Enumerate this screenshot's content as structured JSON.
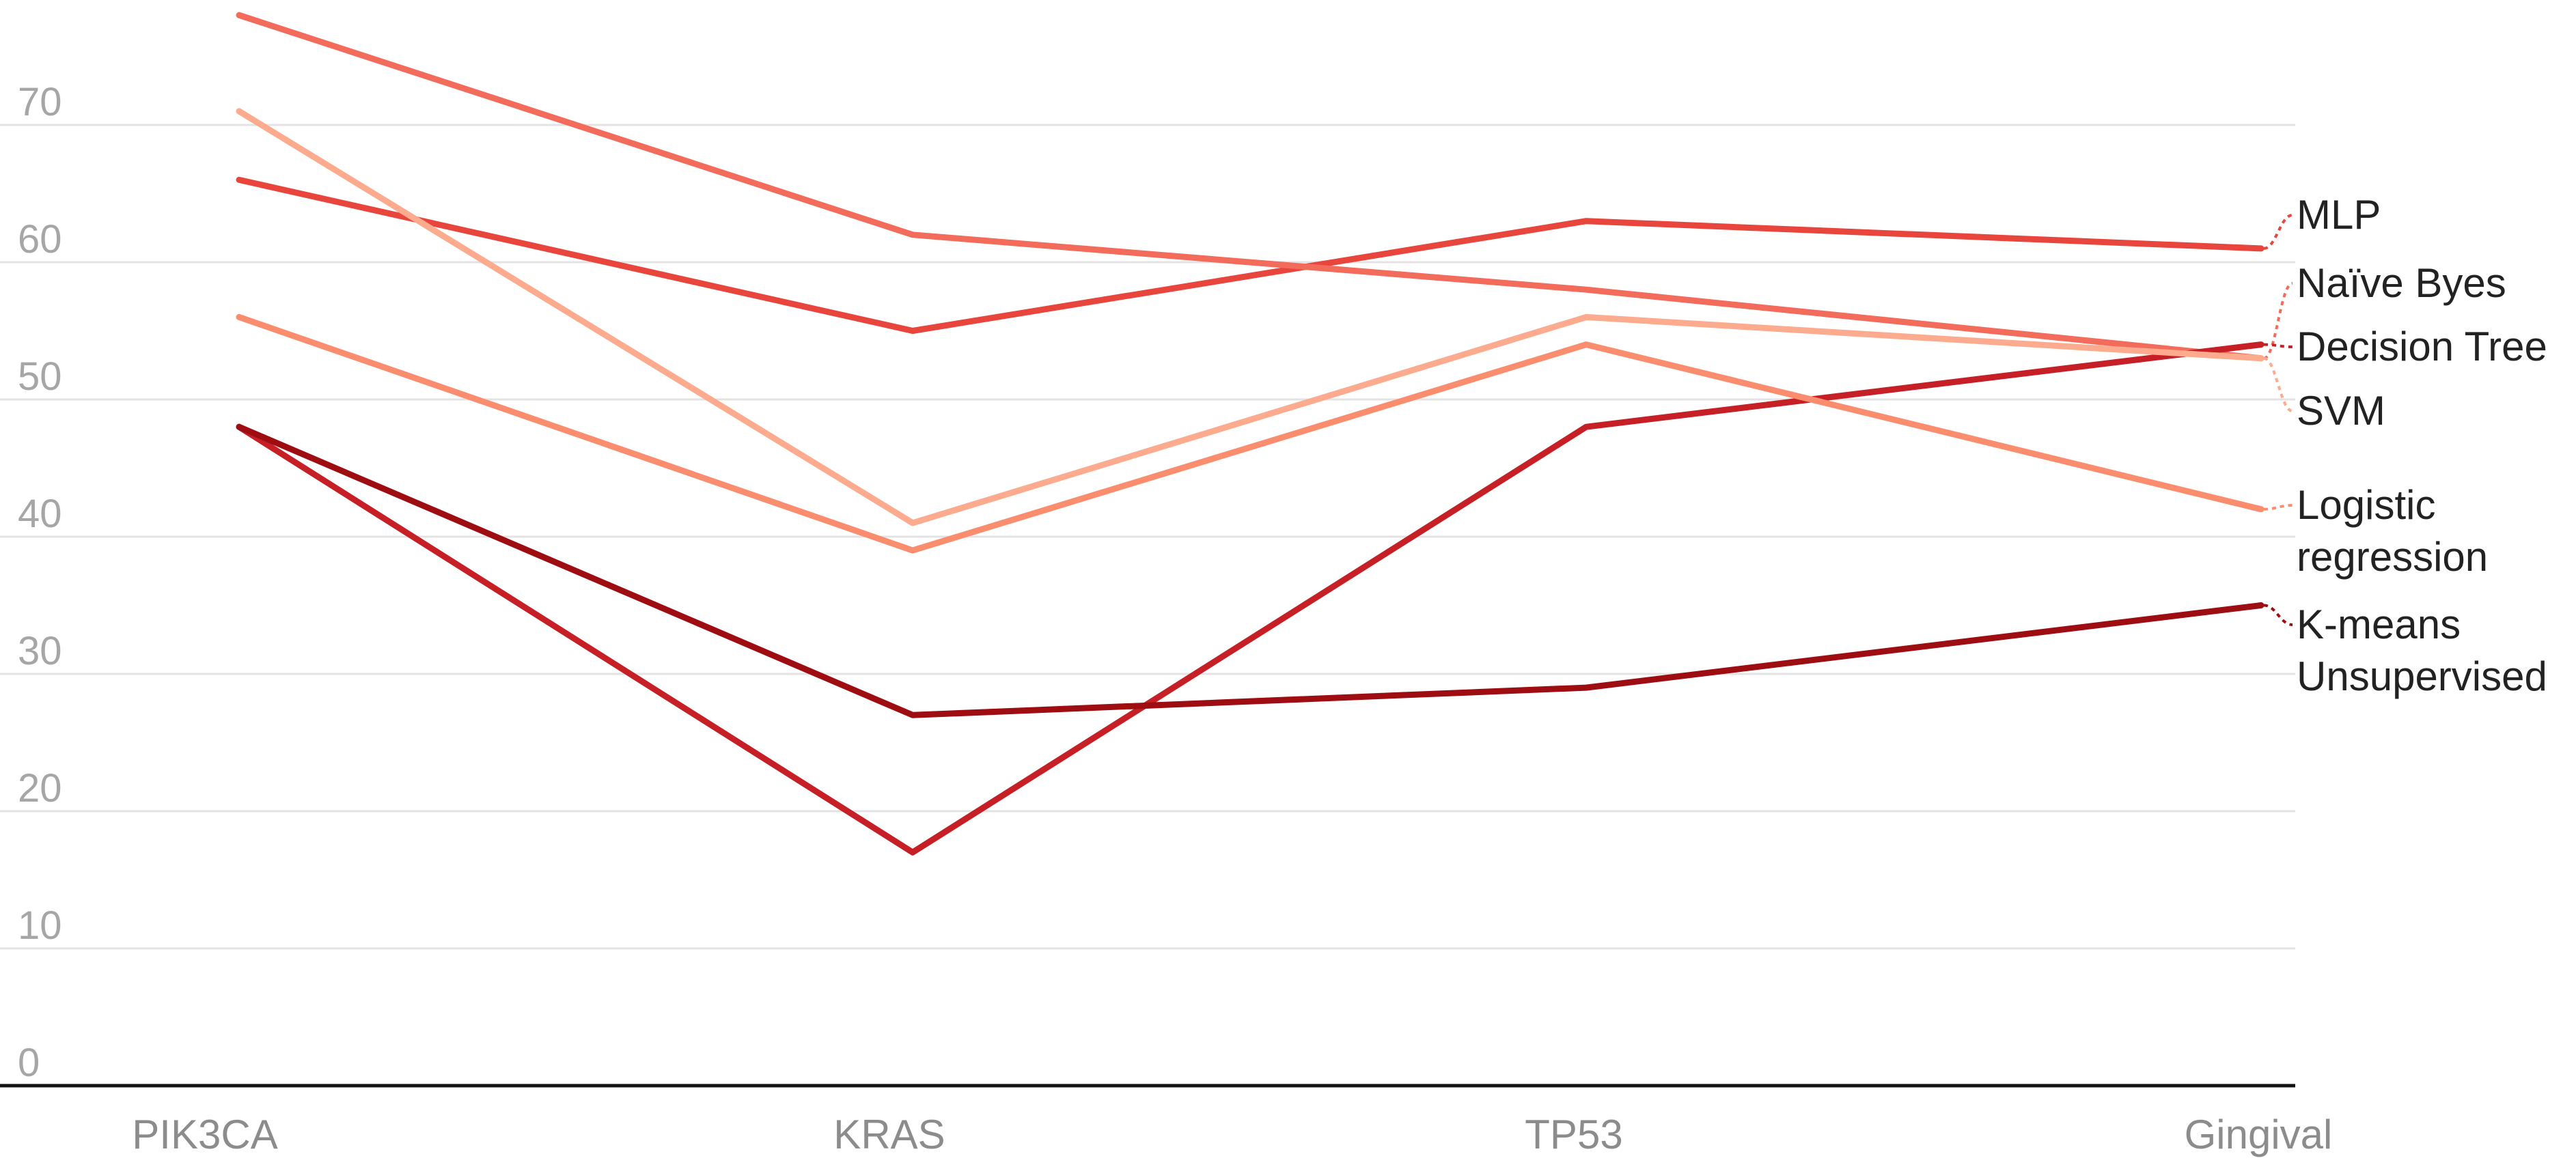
{
  "chart_data": {
    "type": "line",
    "title": "",
    "xlabel": "",
    "ylabel": "",
    "categories": [
      "PIK3CA",
      "KRAS",
      "TP53",
      "Gingival"
    ],
    "ylim": [
      0,
      78
    ],
    "yticks": [
      0,
      10,
      20,
      30,
      40,
      50,
      60,
      70
    ],
    "grid": true,
    "legend": "direct labels at right",
    "series": [
      {
        "name": "MLP",
        "label_lines": [
          "MLP"
        ],
        "values": [
          66,
          55,
          63,
          61
        ],
        "color": "#e8453c"
      },
      {
        "name": "Naïve Byes",
        "label_lines": [
          "Naïve Byes"
        ],
        "values": [
          78,
          62,
          58,
          53
        ],
        "color": "#f26b5b"
      },
      {
        "name": "Decision Tree",
        "label_lines": [
          "Decision Tree"
        ],
        "values": [
          48,
          17,
          48,
          54
        ],
        "color": "#c62026"
      },
      {
        "name": "SVM",
        "label_lines": [
          "SVM"
        ],
        "values": [
          71,
          41,
          56,
          53
        ],
        "color": "#fcab8e"
      },
      {
        "name": "Logistic regression",
        "label_lines": [
          "Logistic",
          "regression"
        ],
        "values": [
          56,
          39,
          54,
          42
        ],
        "color": "#fb8d6f"
      },
      {
        "name": "K-means Unsupervised",
        "label_lines": [
          "K-means",
          "Unsupervised"
        ],
        "values": [
          48,
          27,
          29,
          35
        ],
        "color": "#9e0d12"
      }
    ]
  }
}
